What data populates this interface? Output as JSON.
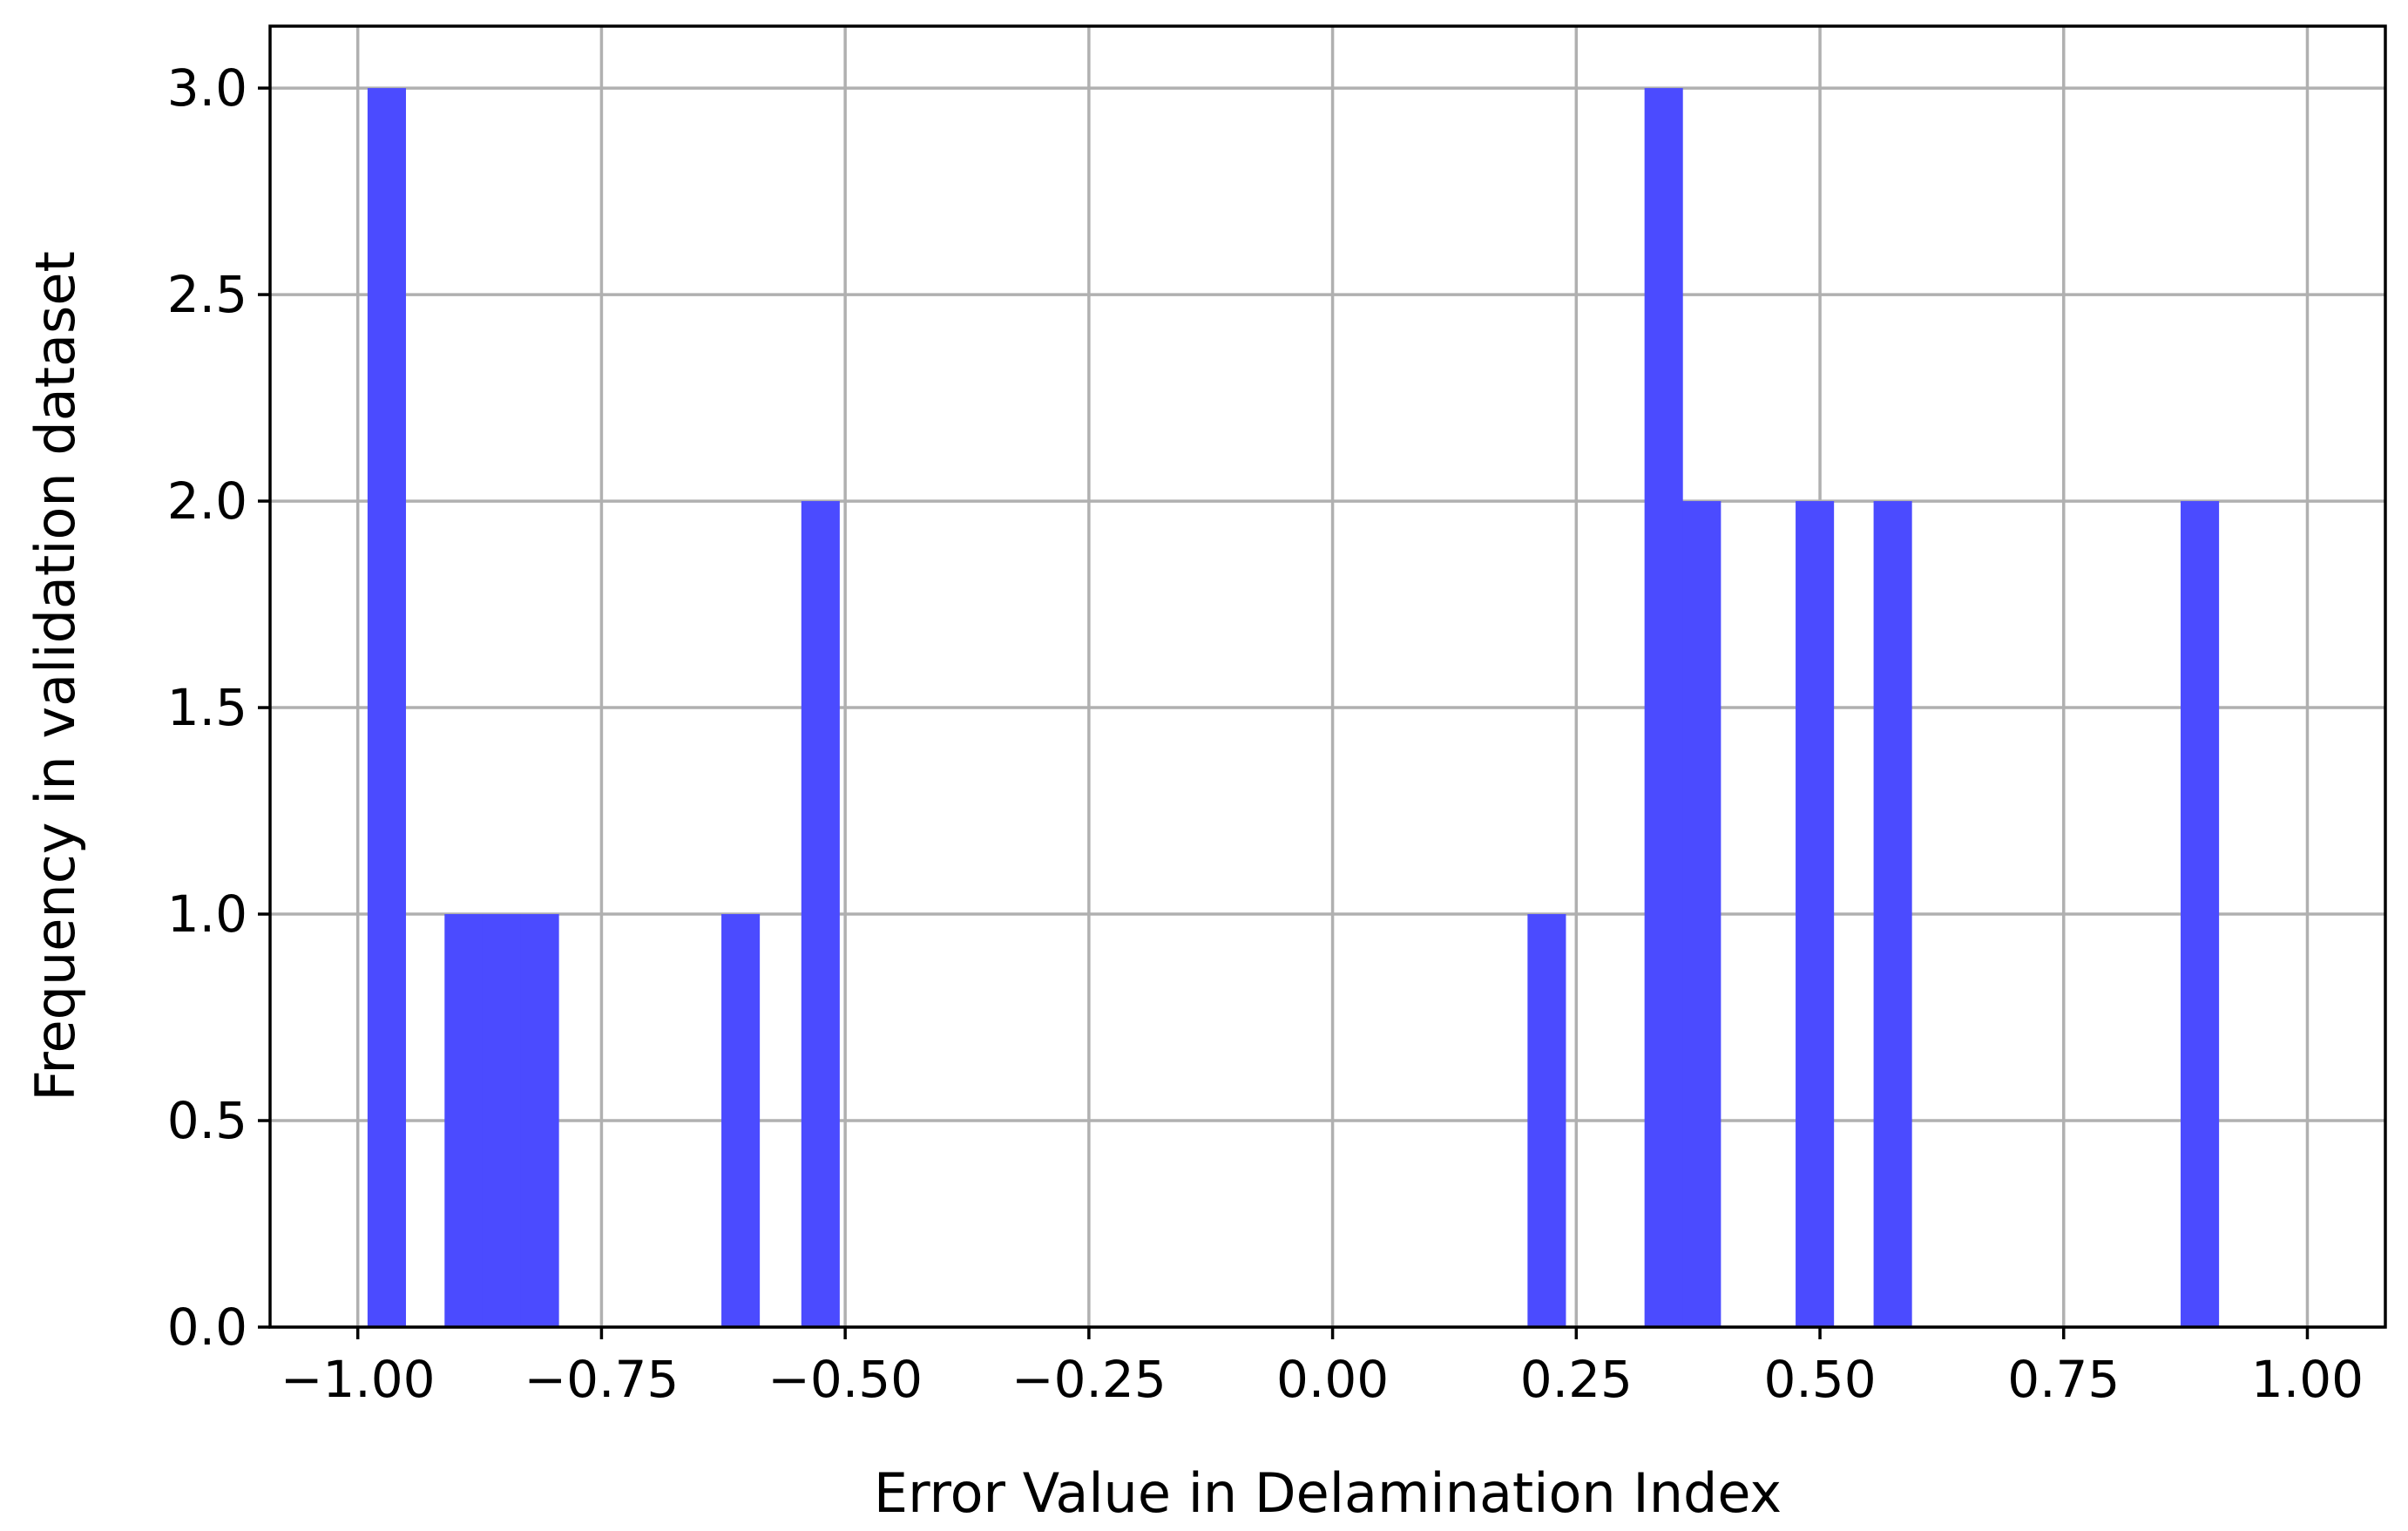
{
  "chart_data": {
    "type": "bar",
    "title": "",
    "xlabel": "Error Value in Delamination Index",
    "ylabel": "Frequency in validation dataset",
    "xlim": [
      -1.09,
      1.08
    ],
    "ylim": [
      0,
      3.15
    ],
    "grid": true,
    "bar_color": "#4b4bff",
    "bin_width": 0.0394,
    "xticks": [
      {
        "value": -1.0,
        "label": "−1.00"
      },
      {
        "value": -0.75,
        "label": "−0.75"
      },
      {
        "value": -0.5,
        "label": "−0.50"
      },
      {
        "value": -0.25,
        "label": "−0.25"
      },
      {
        "value": 0.0,
        "label": "0.00"
      },
      {
        "value": 0.25,
        "label": "0.25"
      },
      {
        "value": 0.5,
        "label": "0.50"
      },
      {
        "value": 0.75,
        "label": "0.75"
      },
      {
        "value": 1.0,
        "label": "1.00"
      }
    ],
    "yticks": [
      {
        "value": 0.0,
        "label": "0.0"
      },
      {
        "value": 0.5,
        "label": "0.5"
      },
      {
        "value": 1.0,
        "label": "1.0"
      },
      {
        "value": 1.5,
        "label": "1.5"
      },
      {
        "value": 2.0,
        "label": "2.0"
      },
      {
        "value": 2.5,
        "label": "2.5"
      },
      {
        "value": 3.0,
        "label": "3.0"
      }
    ],
    "bins": [
      {
        "start": -0.99,
        "count": 3
      },
      {
        "start": -0.911,
        "count": 1
      },
      {
        "start": -0.872,
        "count": 1
      },
      {
        "start": -0.833,
        "count": 1
      },
      {
        "start": -0.627,
        "count": 1
      },
      {
        "start": -0.545,
        "count": 2
      },
      {
        "start": 0.2,
        "count": 1
      },
      {
        "start": 0.32,
        "count": 3
      },
      {
        "start": 0.359,
        "count": 2
      },
      {
        "start": 0.475,
        "count": 2
      },
      {
        "start": 0.555,
        "count": 2
      },
      {
        "start": 0.87,
        "count": 2
      }
    ]
  }
}
